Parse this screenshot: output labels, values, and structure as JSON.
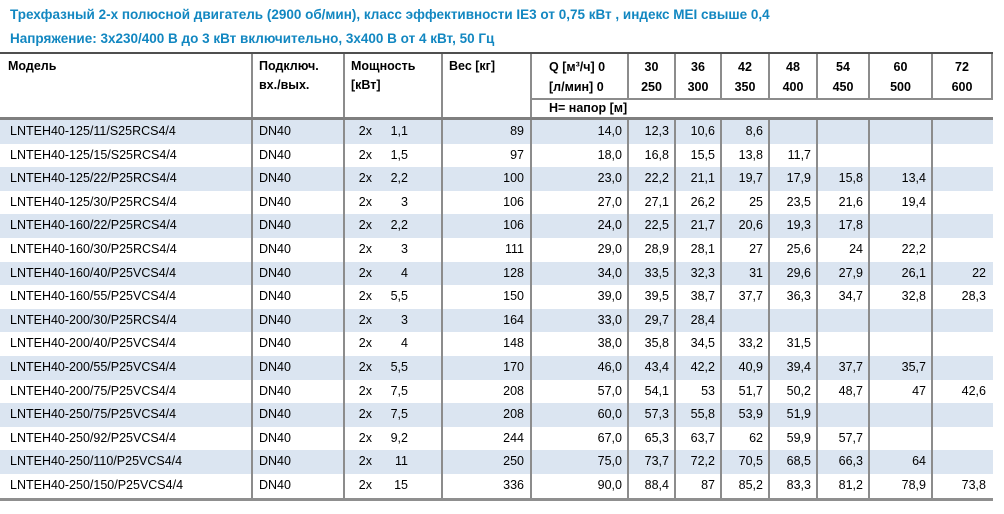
{
  "page": {
    "title_line1": "Трехфазный 2-х полюсной двигатель (2900 об/мин), класс эффективности IE3 от 0,75 кВт ,  индекс MEI свыше 0,4",
    "title_line2": "Напряжение: 3х230/400 В до 3 кВт включительно, 3х400 В от 4 кВт, 50 Гц"
  },
  "colors": {
    "title_accent": "#1287c1",
    "row_shading": "#dbe5f1",
    "border_gray": "#8c8c8c",
    "header_separator": "#7f7f7f",
    "text": "#000000"
  },
  "table": {
    "headers": {
      "model": "Модель",
      "connection_line1": "Подключ.",
      "connection_line2": "вх./вых.",
      "power_line1": "Мощность",
      "power_line2": "[кВт]",
      "weight": "Вес [кг]",
      "q_line1": "Q [м³/ч] 0",
      "q_line2": "[л/мин] 0",
      "head_row_label": "Н= напор [м]"
    },
    "q_columns": [
      {
        "m3h": "30",
        "lmin": "250"
      },
      {
        "m3h": "36",
        "lmin": "300"
      },
      {
        "m3h": "42",
        "lmin": "350"
      },
      {
        "m3h": "48",
        "lmin": "400"
      },
      {
        "m3h": "54",
        "lmin": "450"
      },
      {
        "m3h": "60",
        "lmin": "500"
      },
      {
        "m3h": "72",
        "lmin": "600"
      }
    ],
    "rows": [
      {
        "model": "LNTEH40-125/11/S25RCS4/4",
        "connection": "DN40",
        "power_mult": "2x",
        "power_kw": "1,1",
        "weight_kg": "89",
        "head_m": [
          "14,0",
          "12,3",
          "10,6",
          "8,6",
          "",
          "",
          "",
          ""
        ]
      },
      {
        "model": "LNTEH40-125/15/S25RCS4/4",
        "connection": "DN40",
        "power_mult": "2x",
        "power_kw": "1,5",
        "weight_kg": "97",
        "head_m": [
          "18,0",
          "16,8",
          "15,5",
          "13,8",
          "11,7",
          "",
          "",
          ""
        ]
      },
      {
        "model": "LNTEH40-125/22/P25RCS4/4",
        "connection": "DN40",
        "power_mult": "2x",
        "power_kw": "2,2",
        "weight_kg": "100",
        "head_m": [
          "23,0",
          "22,2",
          "21,1",
          "19,7",
          "17,9",
          "15,8",
          "13,4",
          ""
        ]
      },
      {
        "model": "LNTEH40-125/30/P25RCS4/4",
        "connection": "DN40",
        "power_mult": "2x",
        "power_kw": "3",
        "weight_kg": "106",
        "head_m": [
          "27,0",
          "27,1",
          "26,2",
          "25",
          "23,5",
          "21,6",
          "19,4",
          ""
        ]
      },
      {
        "model": "LNTEH40-160/22/P25RCS4/4",
        "connection": "DN40",
        "power_mult": "2x",
        "power_kw": "2,2",
        "weight_kg": "106",
        "head_m": [
          "24,0",
          "22,5",
          "21,7",
          "20,6",
          "19,3",
          "17,8",
          "",
          ""
        ]
      },
      {
        "model": "LNTEH40-160/30/P25RCS4/4",
        "connection": "DN40",
        "power_mult": "2x",
        "power_kw": "3",
        "weight_kg": "111",
        "head_m": [
          "29,0",
          "28,9",
          "28,1",
          "27",
          "25,6",
          "24",
          "22,2",
          ""
        ]
      },
      {
        "model": "LNTEH40-160/40/P25VCS4/4",
        "connection": "DN40",
        "power_mult": "2x",
        "power_kw": "4",
        "weight_kg": "128",
        "head_m": [
          "34,0",
          "33,5",
          "32,3",
          "31",
          "29,6",
          "27,9",
          "26,1",
          "22"
        ]
      },
      {
        "model": "LNTEH40-160/55/P25VCS4/4",
        "connection": "DN40",
        "power_mult": "2x",
        "power_kw": "5,5",
        "weight_kg": "150",
        "head_m": [
          "39,0",
          "39,5",
          "38,7",
          "37,7",
          "36,3",
          "34,7",
          "32,8",
          "28,3"
        ]
      },
      {
        "model": "LNTEH40-200/30/P25RCS4/4",
        "connection": "DN40",
        "power_mult": "2x",
        "power_kw": "3",
        "weight_kg": "164",
        "head_m": [
          "33,0",
          "29,7",
          "28,4",
          "",
          "",
          "",
          "",
          ""
        ]
      },
      {
        "model": "LNTEH40-200/40/P25VCS4/4",
        "connection": "DN40",
        "power_mult": "2x",
        "power_kw": "4",
        "weight_kg": "148",
        "head_m": [
          "38,0",
          "35,8",
          "34,5",
          "33,2",
          "31,5",
          "",
          "",
          ""
        ]
      },
      {
        "model": "LNTEH40-200/55/P25VCS4/4",
        "connection": "DN40",
        "power_mult": "2x",
        "power_kw": "5,5",
        "weight_kg": "170",
        "head_m": [
          "46,0",
          "43,4",
          "42,2",
          "40,9",
          "39,4",
          "37,7",
          "35,7",
          ""
        ]
      },
      {
        "model": "LNTEH40-200/75/P25VCS4/4",
        "connection": "DN40",
        "power_mult": "2x",
        "power_kw": "7,5",
        "weight_kg": "208",
        "head_m": [
          "57,0",
          "54,1",
          "53",
          "51,7",
          "50,2",
          "48,7",
          "47",
          "42,6"
        ]
      },
      {
        "model": "LNTEH40-250/75/P25VCS4/4",
        "connection": "DN40",
        "power_mult": "2x",
        "power_kw": "7,5",
        "weight_kg": "208",
        "head_m": [
          "60,0",
          "57,3",
          "55,8",
          "53,9",
          "51,9",
          "",
          "",
          ""
        ]
      },
      {
        "model": "LNTEH40-250/92/P25VCS4/4",
        "connection": "DN40",
        "power_mult": "2x",
        "power_kw": "9,2",
        "weight_kg": "244",
        "head_m": [
          "67,0",
          "65,3",
          "63,7",
          "62",
          "59,9",
          "57,7",
          "",
          ""
        ]
      },
      {
        "model": "LNTEH40-250/110/P25VCS4/4",
        "connection": "DN40",
        "power_mult": "2x",
        "power_kw": "11",
        "weight_kg": "250",
        "head_m": [
          "75,0",
          "73,7",
          "72,2",
          "70,5",
          "68,5",
          "66,3",
          "64",
          ""
        ]
      },
      {
        "model": "LNTEH40-250/150/P25VCS4/4",
        "connection": "DN40",
        "power_mult": "2x",
        "power_kw": "15",
        "weight_kg": "336",
        "head_m": [
          "90,0",
          "88,4",
          "87",
          "85,2",
          "83,3",
          "81,2",
          "78,9",
          "73,8"
        ]
      }
    ]
  }
}
